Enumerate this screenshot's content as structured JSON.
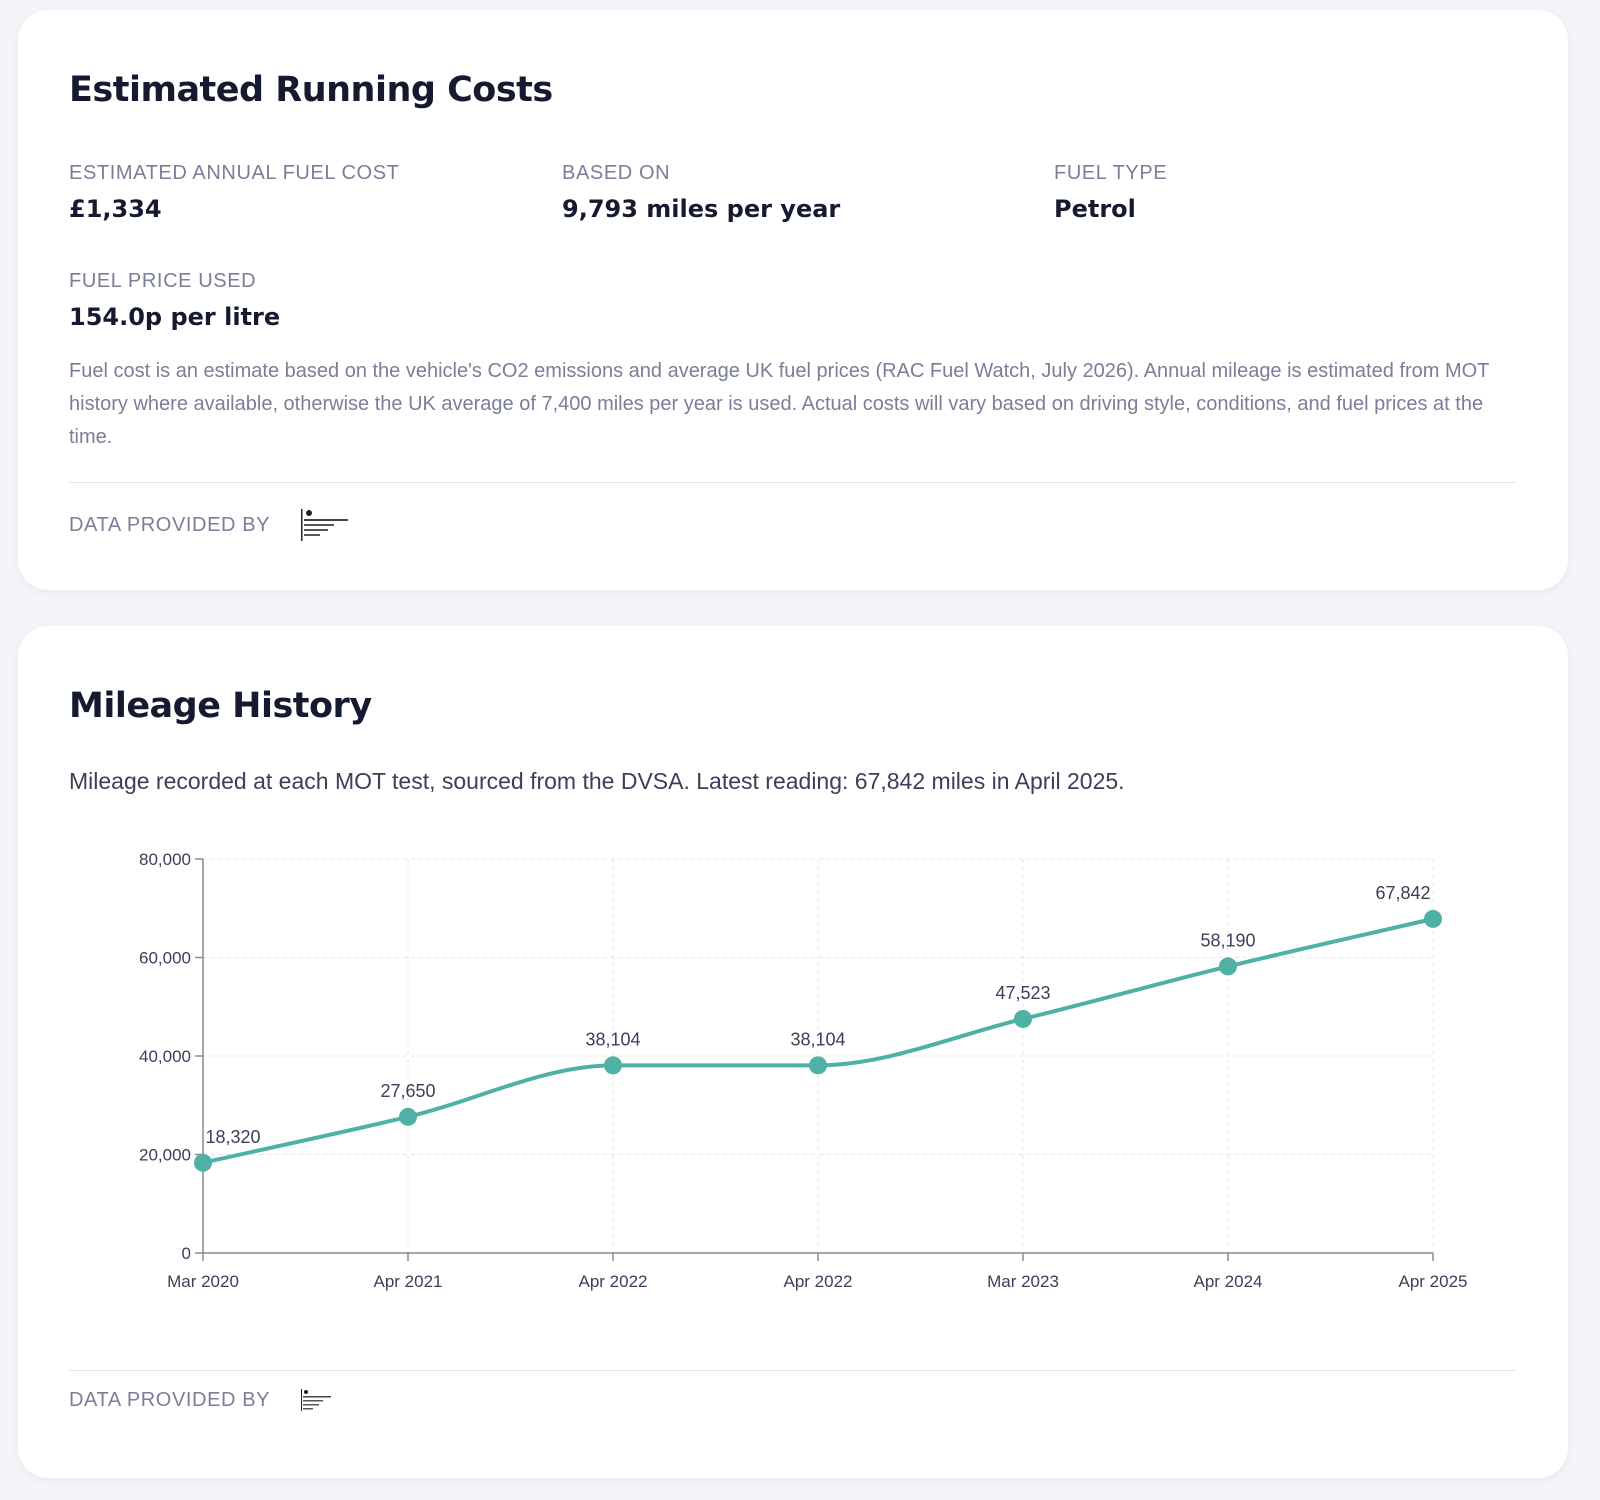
{
  "running_costs": {
    "title": "Estimated Running Costs",
    "annual_fuel_cost": {
      "label": "ESTIMATED ANNUAL FUEL COST",
      "value": "£1,334"
    },
    "based_on": {
      "label": "BASED ON",
      "value": "9,793 miles per year"
    },
    "fuel_type": {
      "label": "FUEL TYPE",
      "value": "Petrol"
    },
    "fuel_price": {
      "label": "FUEL PRICE USED",
      "value": "154.0p per litre"
    },
    "disclaimer": "Fuel cost is an estimate based on the vehicle's CO2 emissions and average UK fuel prices (RAC Fuel Watch, July 2026). Annual mileage is estimated from MOT history where available, otherwise the UK average of 7,400 miles per year is used. Actual costs will vary based on driving style, conditions, and fuel prices at the time.",
    "provider_label": "DATA PROVIDED BY",
    "provider_logo_icon": "dvla-logo-icon"
  },
  "mileage_history": {
    "title": "Mileage History",
    "description": "Mileage recorded at each MOT test, sourced from the DVSA. Latest reading: 67,842 miles in April 2025.",
    "provider_label": "DATA PROVIDED BY",
    "provider_logo_icon": "dvla-logo-icon"
  },
  "colors": {
    "line": "#4fb0a5",
    "axis": "#8a8a8a",
    "grid": "#e3e4ea"
  },
  "chart_data": {
    "type": "line",
    "categories": [
      "Mar 2020",
      "Apr 2021",
      "Apr 2022",
      "Apr 2022",
      "Mar 2023",
      "Apr 2024",
      "Apr 2025"
    ],
    "values": [
      18320,
      27650,
      38104,
      38104,
      47523,
      58190,
      67842
    ],
    "data_labels": [
      "18,320",
      "27,650",
      "38,104",
      "38,104",
      "47,523",
      "58,190",
      "67,842"
    ],
    "y_ticks": [
      0,
      20000,
      40000,
      60000,
      80000
    ],
    "y_tick_labels": [
      "0",
      "20,000",
      "40,000",
      "60,000",
      "80,000"
    ],
    "ylim": [
      0,
      80000
    ],
    "grid": true,
    "xlabel": "",
    "ylabel": ""
  }
}
